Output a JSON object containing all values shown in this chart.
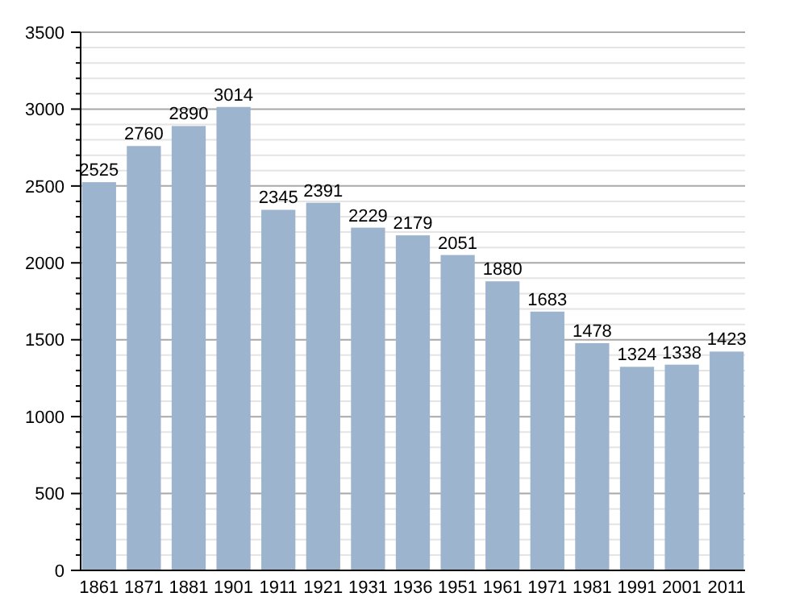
{
  "chart_data": {
    "type": "bar",
    "categories": [
      "1861",
      "1871",
      "1881",
      "1901",
      "1911",
      "1921",
      "1931",
      "1936",
      "1951",
      "1961",
      "1971",
      "1981",
      "1991",
      "2001",
      "2011"
    ],
    "values": [
      2525,
      2760,
      2890,
      3014,
      2345,
      2391,
      2229,
      2179,
      2051,
      1880,
      1683,
      1478,
      1324,
      1338,
      1423
    ],
    "color": "#9db4cf",
    "data_labels": true,
    "grid": "y",
    "ylim": [
      0,
      3500
    ],
    "yticks": [
      0,
      {
        "value": 100,
        "label": null
      },
      {
        "value": 200,
        "label": null
      },
      {
        "value": 300,
        "label": null
      },
      {
        "value": 400,
        "label": null
      },
      500,
      {
        "value": 600,
        "label": null
      },
      {
        "value": 700,
        "label": null
      },
      {
        "value": 800,
        "label": null
      },
      {
        "value": 900,
        "label": null
      },
      1000,
      {
        "value": 1100,
        "label": null
      },
      {
        "value": 1200,
        "label": null
      },
      {
        "value": 1300,
        "label": null
      },
      {
        "value": 1400,
        "label": null
      },
      1500,
      {
        "value": 1600,
        "label": null
      },
      {
        "value": 1700,
        "label": null
      },
      {
        "value": 1800,
        "label": null
      },
      {
        "value": 1900,
        "label": null
      },
      2000,
      {
        "value": 2100,
        "label": null
      },
      {
        "value": 2200,
        "label": null
      },
      {
        "value": 2300,
        "label": null
      },
      {
        "value": 2400,
        "label": null
      },
      2500,
      {
        "value": 2600,
        "label": null
      },
      {
        "value": 2700,
        "label": null
      },
      {
        "value": 2800,
        "label": null
      },
      {
        "value": 2900,
        "label": null
      },
      3000,
      {
        "value": 3100,
        "label": null
      },
      {
        "value": 3200,
        "label": null
      },
      {
        "value": 3300,
        "label": null
      },
      {
        "value": 3400,
        "label": null
      },
      3500
    ]
  }
}
